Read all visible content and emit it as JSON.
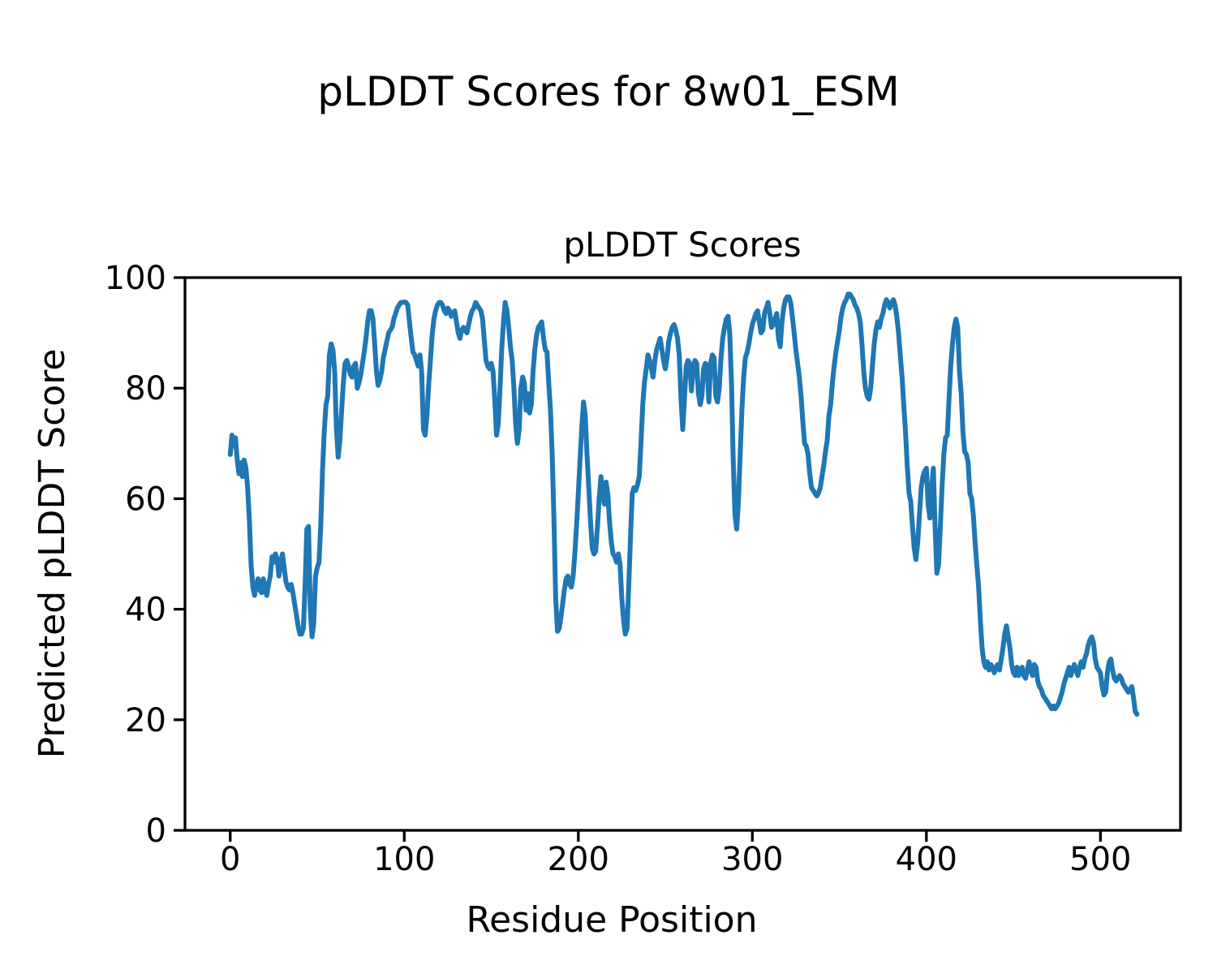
{
  "figure_title": "pLDDT Scores for 8w01_ESM",
  "axes": {
    "title": "pLDDT Scores",
    "xlabel": "Residue Position",
    "ylabel": "Predicted pLDDT Score"
  },
  "colors": {
    "line": "#1f77b4",
    "text": "#000000",
    "background": "#ffffff"
  },
  "chart_data": {
    "type": "line",
    "title": "pLDDT Scores",
    "xlabel": "Residue Position",
    "ylabel": "Predicted pLDDT Score",
    "series_name": "pLDDT",
    "grid": false,
    "legend_position": "none",
    "x_start": 0,
    "x_step": 1,
    "xlim": [
      -26,
      546
    ],
    "ylim": [
      0,
      100
    ],
    "x_ticks": [
      0,
      100,
      200,
      300,
      400,
      500
    ],
    "y_ticks": [
      0,
      20,
      40,
      60,
      80,
      100
    ],
    "values": [
      68,
      71.5,
      69.5,
      71,
      67,
      64.5,
      66.5,
      64,
      67,
      65.5,
      62,
      56,
      48,
      44,
      42.5,
      44.5,
      45.5,
      43.5,
      43,
      45.5,
      44,
      42.5,
      44.5,
      46,
      49.5,
      48.5,
      50,
      49,
      46,
      48.5,
      50,
      47.5,
      45,
      44,
      43.5,
      44.5,
      43,
      41,
      39,
      37,
      35.5,
      35.5,
      36.5,
      44,
      54.5,
      55,
      40,
      35,
      37.5,
      46,
      47.5,
      48.5,
      55,
      65,
      72,
      77,
      78.5,
      86,
      88,
      87,
      83,
      73,
      67.5,
      70.5,
      76,
      81,
      84.5,
      85,
      84,
      82.5,
      82,
      84,
      84.5,
      80,
      81,
      82.5,
      84.5,
      86.5,
      89,
      92,
      94,
      94,
      92.5,
      88,
      83,
      80.5,
      81.5,
      83,
      85.5,
      87,
      88.5,
      90,
      90.5,
      91,
      92.5,
      93.5,
      94.5,
      95,
      95.5,
      95.5,
      95.6,
      95.5,
      95,
      92,
      89,
      86.5,
      86,
      85,
      84,
      86,
      83,
      72.5,
      71.5,
      75,
      80.5,
      85,
      89.5,
      92.5,
      94,
      95,
      95.5,
      95.5,
      95,
      94,
      93.5,
      94.5,
      94,
      93,
      93.5,
      94,
      92,
      90,
      89,
      90.5,
      91,
      90.5,
      90,
      91.5,
      93,
      94,
      94.5,
      95.5,
      95,
      94.5,
      94,
      92.5,
      88.5,
      85,
      84,
      83.5,
      84.5,
      83,
      78,
      71.5,
      73.5,
      80,
      87,
      92,
      95.5,
      94,
      91,
      87.5,
      85,
      80,
      73.5,
      70,
      72.5,
      80,
      82,
      81,
      76,
      79,
      75.5,
      77,
      83,
      87,
      89.5,
      91,
      91.5,
      92,
      89,
      87,
      86.5,
      81,
      76,
      68,
      56,
      42,
      36,
      36.5,
      38.5,
      41,
      43.5,
      45.5,
      46,
      44.5,
      44,
      46,
      50,
      55,
      61,
      67,
      73,
      77.5,
      75,
      68,
      62,
      56,
      51,
      50,
      50.5,
      55,
      60,
      64,
      61,
      59,
      63,
      60.5,
      55.5,
      52,
      50,
      49.5,
      48.5,
      50,
      48,
      42,
      38,
      35.5,
      36.5,
      44.5,
      53,
      61,
      62,
      61.5,
      62.5,
      64,
      70,
      77,
      81,
      83.5,
      86,
      85,
      83.5,
      82,
      85,
      87,
      88,
      89,
      87,
      85,
      83.5,
      85.5,
      88.5,
      90,
      91,
      91.5,
      90.5,
      89,
      86,
      78,
      72.5,
      78,
      84,
      85,
      84.5,
      79.5,
      83.5,
      85,
      84.5,
      79,
      77,
      78.5,
      83.5,
      84.5,
      84,
      77.5,
      84.5,
      86,
      85.5,
      78.5,
      77.5,
      80,
      85.5,
      89,
      91,
      92.5,
      93,
      90,
      81,
      67,
      57,
      54.5,
      59.5,
      68,
      76,
      82,
      85.5,
      86.5,
      88,
      90,
      91.5,
      92.5,
      93.5,
      94,
      92,
      90,
      90.5,
      93.5,
      94.5,
      95.5,
      93.5,
      91,
      91.5,
      92.5,
      93.5,
      89,
      87.5,
      92,
      94.5,
      96,
      96.5,
      96.5,
      95.5,
      93,
      90,
      87,
      84.5,
      82,
      78.5,
      74,
      70,
      69.5,
      68,
      64.5,
      62,
      61.5,
      61,
      60.5,
      61,
      62,
      64,
      66,
      68.5,
      70.5,
      75,
      77,
      81,
      84,
      86.5,
      88.5,
      90.5,
      93,
      94.5,
      95.5,
      96,
      97,
      97,
      96.5,
      96,
      95,
      94.5,
      93.5,
      92,
      88,
      83,
      80,
      78.5,
      78,
      80,
      84,
      88,
      90.5,
      92,
      91,
      92.5,
      93.5,
      95,
      96,
      95.5,
      94.5,
      95.5,
      96,
      95,
      93,
      90,
      86,
      82,
      77,
      72,
      66,
      61,
      59.5,
      55,
      51,
      49,
      52,
      57,
      62,
      64,
      65,
      65.5,
      59,
      56.5,
      62,
      65.5,
      55,
      46.5,
      48,
      55,
      62,
      68,
      71,
      71.5,
      78,
      84,
      88,
      91,
      92.5,
      91,
      83,
      79,
      72,
      68.5,
      68,
      66.5,
      61,
      60,
      57,
      52,
      48,
      44,
      38,
      33,
      30.5,
      29.5,
      30.5,
      29,
      30,
      29.5,
      28.5,
      29.5,
      30,
      29,
      31,
      33,
      35.5,
      37,
      35,
      33,
      30,
      28.5,
      28,
      29.5,
      28,
      29,
      29.5,
      28,
      27.5,
      29,
      30.5,
      29,
      28,
      30,
      29.5,
      27,
      26,
      25.5,
      24.5,
      24,
      23.5,
      23,
      22.5,
      22,
      22.5,
      22,
      22.5,
      23,
      24,
      25,
      26.5,
      27.5,
      28.5,
      29.5,
      28,
      29,
      30,
      29,
      28,
      29.5,
      30.5,
      29.5,
      31,
      32,
      33.5,
      34.5,
      35,
      34,
      31,
      29.5,
      29,
      28.5,
      26,
      24.5,
      25,
      28.5,
      30.5,
      31,
      29,
      27.5,
      27,
      27.5,
      28,
      27.5,
      26.5,
      26,
      25.5,
      25,
      25.5,
      26,
      24,
      21.5,
      21
    ]
  }
}
